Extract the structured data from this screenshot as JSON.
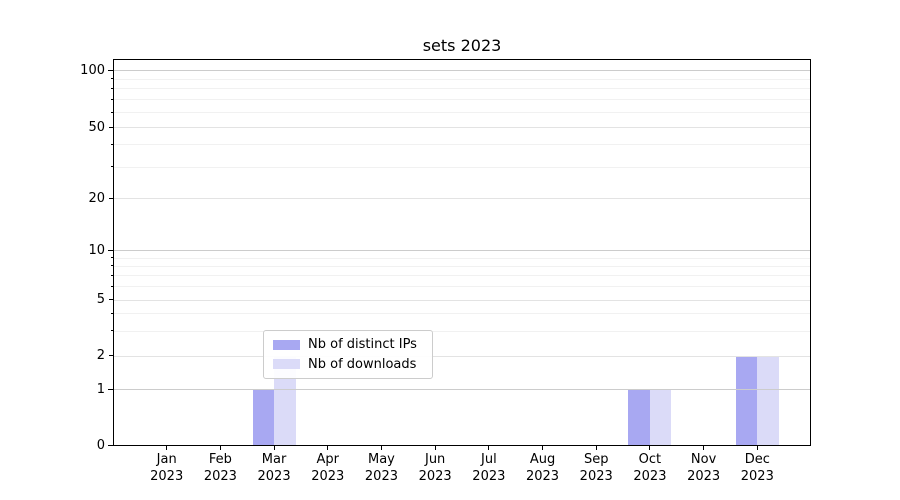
{
  "chart_data": {
    "type": "bar",
    "title": "sets 2023",
    "categories": [
      "Jan",
      "Feb",
      "Mar",
      "Apr",
      "May",
      "Jun",
      "Jul",
      "Aug",
      "Sep",
      "Oct",
      "Nov",
      "Dec"
    ],
    "category_year": "2023",
    "series": [
      {
        "name": "Nb of distinct IPs",
        "color": "#a8a8f2",
        "values": [
          0,
          0,
          1,
          0,
          0,
          0,
          0,
          0,
          0,
          1,
          0,
          2
        ]
      },
      {
        "name": "Nb of downloads",
        "color": "#dbdbf8",
        "values": [
          0,
          0,
          2,
          0,
          0,
          0,
          0,
          0,
          0,
          1,
          0,
          2
        ]
      }
    ],
    "yaxis": {
      "scale": "symlog",
      "ylim": [
        0,
        115
      ],
      "tick_values": [
        0,
        1,
        2,
        5,
        10,
        20,
        50,
        100
      ],
      "tick_labels": [
        "0",
        "1",
        "2",
        "5",
        "10",
        "20",
        "50",
        "100"
      ],
      "major_tick_values": [
        0,
        1,
        10,
        100
      ],
      "minor_gridline_values": [
        3,
        4,
        6,
        7,
        8,
        9,
        30,
        40,
        60,
        70,
        80,
        90
      ],
      "grid": true
    },
    "xaxis": {
      "xlim": [
        -1,
        12
      ]
    },
    "legend": {
      "position": "lower center"
    },
    "colors": {
      "axis": "#000000",
      "major_grid": "#cccccc",
      "labeled_minor_grid": "#e3e3e3",
      "minor_grid": "#f1f1f1",
      "legend_border": "#cccccc"
    }
  }
}
